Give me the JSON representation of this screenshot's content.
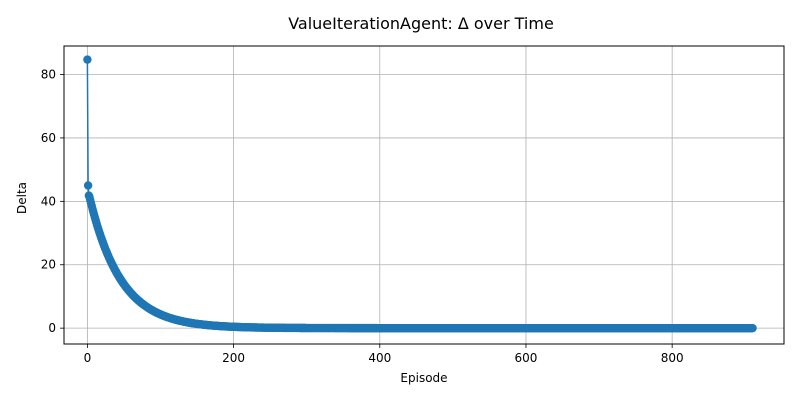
{
  "chart_data": {
    "type": "line",
    "title": "ValueIterationAgent: Δ over Time",
    "xlabel": "Episode",
    "ylabel": "Delta",
    "xlim": [
      -32,
      953
    ],
    "ylim": [
      -5,
      89
    ],
    "xticks": [
      0,
      200,
      400,
      600,
      800
    ],
    "yticks": [
      0,
      20,
      40,
      60,
      80
    ],
    "grid": true,
    "marker": "circle",
    "series": [
      {
        "name": "",
        "color": "#1f77b4",
        "generator": {
          "x_start": 0,
          "x_end": 910,
          "x_step": 1,
          "initial_points": [
            [
              0,
              84.7
            ],
            [
              1,
              45.0
            ],
            [
              2,
              41.8
            ],
            [
              3,
              41.3
            ]
          ],
          "decay_from_x": 3,
          "decay_start_value": 41.3,
          "decay_rate_per_episode": 0.977
        }
      }
    ]
  }
}
